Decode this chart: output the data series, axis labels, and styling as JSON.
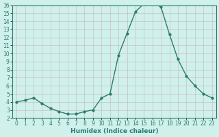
{
  "title": "",
  "xlabel": "Humidex (Indice chaleur)",
  "ylabel": "",
  "x": [
    0,
    1,
    2,
    3,
    4,
    5,
    6,
    7,
    8,
    9,
    10,
    11,
    12,
    13,
    14,
    15,
    16,
    17,
    18,
    19,
    20,
    21,
    22,
    23
  ],
  "y": [
    4.0,
    4.2,
    4.5,
    3.8,
    3.2,
    2.8,
    2.5,
    2.5,
    2.8,
    3.0,
    4.5,
    5.0,
    9.8,
    12.5,
    15.2,
    16.2,
    16.3,
    15.8,
    12.4,
    9.3,
    7.2,
    6.0,
    5.0,
    4.5
  ],
  "line_color": "#2d7a6e",
  "marker": "o",
  "marker_size": 2.5,
  "bg_color": "#cff0eb",
  "grid_color": "#c8bec8",
  "ylim": [
    2,
    16
  ],
  "xlim": [
    -0.5,
    23.5
  ],
  "yticks": [
    2,
    3,
    4,
    5,
    6,
    7,
    8,
    9,
    10,
    11,
    12,
    13,
    14,
    15,
    16
  ],
  "xticks": [
    0,
    1,
    2,
    3,
    4,
    5,
    6,
    7,
    8,
    9,
    10,
    11,
    12,
    13,
    14,
    15,
    16,
    17,
    18,
    19,
    20,
    21,
    22,
    23
  ],
  "label_fontsize": 6.5,
  "tick_fontsize": 5.5
}
